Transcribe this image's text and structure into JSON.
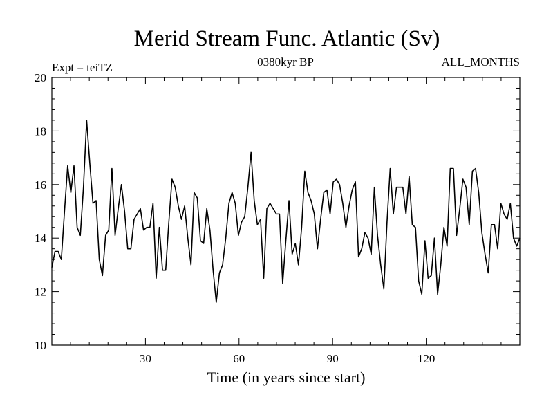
{
  "chart_data": {
    "type": "line",
    "title": "Merid Stream Func. Atlantic (Sv)",
    "subtitle_left": "Expt = teiTZ",
    "subtitle_center": "0380kyr BP",
    "subtitle_right": "ALL_MONTHS",
    "xlabel": "Time (in years since start)",
    "ylabel": "",
    "xlim": [
      0,
      150
    ],
    "ylim": [
      10,
      20
    ],
    "x_ticks": [
      30,
      60,
      90,
      120
    ],
    "x_tick_labels": [
      "30",
      "60",
      "90",
      "120"
    ],
    "y_ticks": [
      10,
      12,
      14,
      16,
      18,
      20
    ],
    "y_tick_labels": [
      "10",
      "12",
      "14",
      "16",
      "18",
      "20"
    ],
    "grid": false,
    "line_color": "#000000",
    "series": [
      {
        "name": "Merid Stream Func. Atlantic",
        "values": [
          12.9,
          13.5,
          13.5,
          13.2,
          15.0,
          16.7,
          15.7,
          16.7,
          14.4,
          14.1,
          15.9,
          18.4,
          16.8,
          15.3,
          15.4,
          13.2,
          12.6,
          14.1,
          14.3,
          16.6,
          14.1,
          15.1,
          16.0,
          15.0,
          13.6,
          13.6,
          14.7,
          14.9,
          15.1,
          14.3,
          14.4,
          14.4,
          15.3,
          12.5,
          14.4,
          12.8,
          12.8,
          14.6,
          16.2,
          15.9,
          15.2,
          14.7,
          15.2,
          14.0,
          13.0,
          15.7,
          15.5,
          13.9,
          13.8,
          15.1,
          14.3,
          12.8,
          11.6,
          12.7,
          13.0,
          14.0,
          15.3,
          15.7,
          15.3,
          14.1,
          14.6,
          14.8,
          15.9,
          17.2,
          15.4,
          14.5,
          14.7,
          12.5,
          15.1,
          15.3,
          15.1,
          14.9,
          14.9,
          12.3,
          13.9,
          15.4,
          13.4,
          13.8,
          13.0,
          14.4,
          16.5,
          15.7,
          15.4,
          14.9,
          13.6,
          14.7,
          15.7,
          15.8,
          14.9,
          16.1,
          16.2,
          16.0,
          15.3,
          14.4,
          15.2,
          15.8,
          16.1,
          13.3,
          13.6,
          14.2,
          14.0,
          13.4,
          15.9,
          14.1,
          13.0,
          12.1,
          14.6,
          16.6,
          14.9,
          15.9,
          15.9,
          15.9,
          14.9,
          16.3,
          14.5,
          14.4,
          12.4,
          11.9,
          13.9,
          12.5,
          12.6,
          14.0,
          11.9,
          13.0,
          14.4,
          13.7,
          16.6,
          16.6,
          14.1,
          15.1,
          16.2,
          15.9,
          14.5,
          16.5,
          16.6,
          15.7,
          14.2,
          13.4,
          12.7,
          14.5,
          14.5,
          13.6,
          15.3,
          14.9,
          14.7,
          15.3,
          14.0,
          13.7,
          14.0
        ]
      }
    ]
  }
}
